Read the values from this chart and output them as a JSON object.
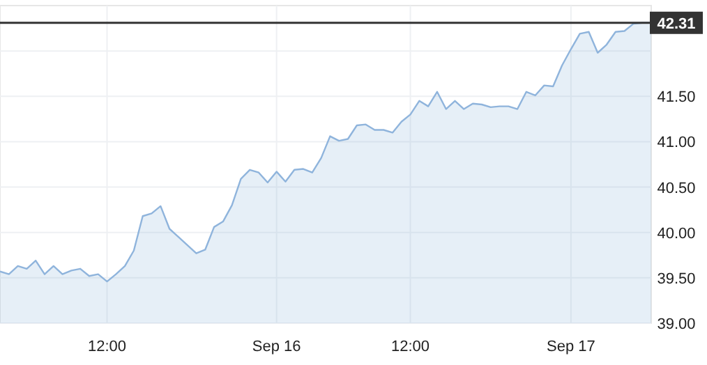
{
  "chart_data": {
    "type": "area",
    "categories": [
      null,
      null,
      null,
      null,
      null,
      null,
      null,
      null,
      null,
      null,
      null,
      null,
      "12:00",
      null,
      null,
      null,
      null,
      null,
      null,
      null,
      null,
      null,
      null,
      null,
      null,
      null,
      null,
      null,
      null,
      null,
      null,
      "Sep 16",
      null,
      null,
      null,
      null,
      null,
      null,
      null,
      null,
      null,
      null,
      null,
      null,
      null,
      null,
      "12:00",
      null,
      null,
      null,
      null,
      null,
      null,
      null,
      null,
      null,
      null,
      null,
      null,
      null,
      null,
      null,
      null,
      null,
      "Sep 17",
      null,
      null,
      null,
      null,
      null,
      null,
      null,
      null,
      null
    ],
    "series": [
      {
        "color": "#8fb4dc",
        "values": [
          39.57,
          39.54,
          39.63,
          39.6,
          39.69,
          39.54,
          39.63,
          39.54,
          39.58,
          39.6,
          39.52,
          39.54,
          39.46,
          39.54,
          39.63,
          39.8,
          40.18,
          40.21,
          40.29,
          40.04,
          39.95,
          39.86,
          39.77,
          39.81,
          40.06,
          40.12,
          40.3,
          40.59,
          40.69,
          40.66,
          40.55,
          40.67,
          40.56,
          40.69,
          40.7,
          40.66,
          40.82,
          41.06,
          41.01,
          41.03,
          41.18,
          41.19,
          41.13,
          41.13,
          41.1,
          41.22,
          41.3,
          41.45,
          41.39,
          41.55,
          41.36,
          41.45,
          41.36,
          41.42,
          41.41,
          41.38,
          41.39,
          41.39,
          41.36,
          41.55,
          41.51,
          41.62,
          41.61,
          41.84,
          42.02,
          42.19,
          42.21,
          41.98,
          42.07,
          42.21,
          42.22,
          42.3,
          42.31,
          42.31
        ]
      }
    ],
    "ylim": [
      39,
      42.5
    ],
    "yticks": [
      {
        "value": 39,
        "label": "39.00"
      },
      {
        "value": 39.5,
        "label": "39.50"
      },
      {
        "value": 40,
        "label": "40.00"
      },
      {
        "value": 40.5,
        "label": "40.50"
      },
      {
        "value": 41,
        "label": "41.00"
      },
      {
        "value": 41.5,
        "label": "41.50"
      },
      {
        "value": 42,
        "label": null
      }
    ],
    "ref_lines": [
      {
        "axis": "y",
        "value": 42.31,
        "label": "42.31",
        "color": "#333333"
      }
    ],
    "grid": true
  }
}
